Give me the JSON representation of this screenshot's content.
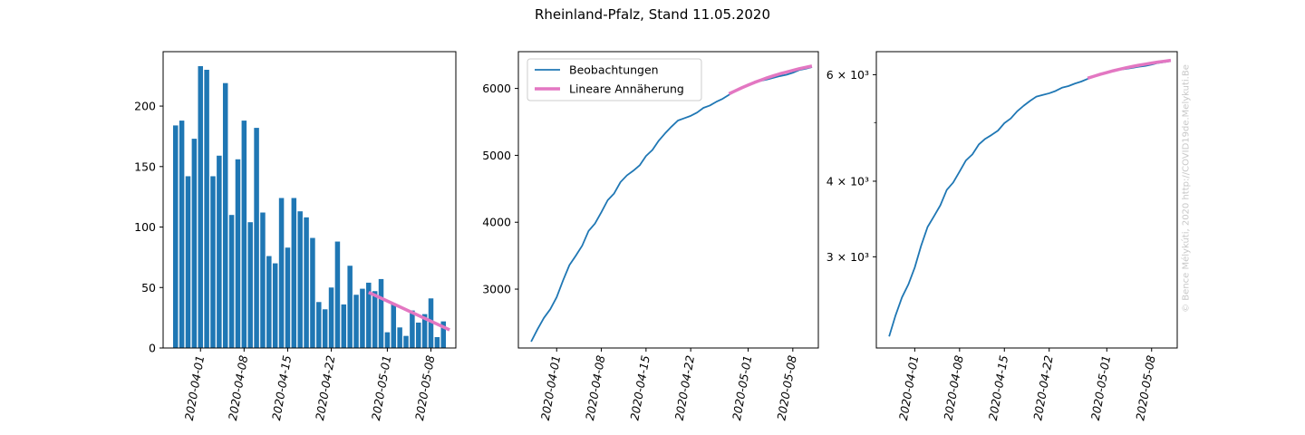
{
  "suptitle": "Rheinland-Pfalz, Stand 11.05.2020",
  "watermark": "© Bence Mélykúti, 2020  http://COVID19de.Melykuti.Be",
  "colors": {
    "observed": "#1f77b4",
    "fit": "#e377c2"
  },
  "chart_data": [
    {
      "type": "bar",
      "title": "",
      "xlabel": "",
      "ylabel": "",
      "ylim": [
        0,
        245
      ],
      "yticks": [
        0,
        50,
        100,
        150,
        200
      ],
      "xticks": [
        "2020-04-01",
        "2020-04-08",
        "2020-04-15",
        "2020-04-22",
        "2020-05-01",
        "2020-05-08"
      ],
      "xlim": [
        "2020-03-26",
        "2020-05-12"
      ],
      "grid": false,
      "series": [
        {
          "kind": "bar",
          "x": [
            "2020-03-28",
            "2020-03-29",
            "2020-03-30",
            "2020-03-31",
            "2020-04-01",
            "2020-04-02",
            "2020-04-03",
            "2020-04-04",
            "2020-04-05",
            "2020-04-06",
            "2020-04-07",
            "2020-04-08",
            "2020-04-09",
            "2020-04-10",
            "2020-04-11",
            "2020-04-12",
            "2020-04-13",
            "2020-04-14",
            "2020-04-15",
            "2020-04-16",
            "2020-04-17",
            "2020-04-18",
            "2020-04-19",
            "2020-04-20",
            "2020-04-21",
            "2020-04-22",
            "2020-04-23",
            "2020-04-24",
            "2020-04-25",
            "2020-04-26",
            "2020-04-27",
            "2020-04-28",
            "2020-04-29",
            "2020-04-30",
            "2020-05-01",
            "2020-05-02",
            "2020-05-03",
            "2020-05-04",
            "2020-05-05",
            "2020-05-06",
            "2020-05-07",
            "2020-05-08",
            "2020-05-09",
            "2020-05-10",
            "2020-05-11"
          ],
          "values": [
            184,
            188,
            142,
            173,
            233,
            230,
            142,
            159,
            219,
            110,
            156,
            188,
            104,
            182,
            112,
            76,
            70,
            124,
            83,
            124,
            113,
            108,
            91,
            38,
            32,
            50,
            88,
            36,
            68,
            44,
            49,
            54,
            47,
            57,
            13,
            37,
            17,
            10,
            31,
            21,
            28,
            41,
            9,
            22,
            0
          ]
        },
        {
          "kind": "line",
          "x": [
            "2020-04-28",
            "2020-05-11"
          ],
          "values": [
            46,
            15
          ]
        }
      ]
    },
    {
      "type": "line",
      "title": "",
      "xlabel": "",
      "ylabel": "",
      "ylim": [
        2120,
        6550
      ],
      "yticks": [
        3000,
        4000,
        5000,
        6000
      ],
      "xticks": [
        "2020-04-01",
        "2020-04-08",
        "2020-04-15",
        "2020-04-22",
        "2020-05-01",
        "2020-05-08"
      ],
      "xlim": [
        "2020-03-26",
        "2020-05-12"
      ],
      "grid": false,
      "legend": {
        "placement": "upper left",
        "entries": [
          "Beobachtungen",
          "Lineare Annäherung"
        ]
      },
      "series": [
        {
          "name": "Beobachtungen",
          "x": [
            "2020-03-28",
            "2020-03-29",
            "2020-03-30",
            "2020-03-31",
            "2020-04-01",
            "2020-04-02",
            "2020-04-03",
            "2020-04-04",
            "2020-04-05",
            "2020-04-06",
            "2020-04-07",
            "2020-04-08",
            "2020-04-09",
            "2020-04-10",
            "2020-04-11",
            "2020-04-12",
            "2020-04-13",
            "2020-04-14",
            "2020-04-15",
            "2020-04-16",
            "2020-04-17",
            "2020-04-18",
            "2020-04-19",
            "2020-04-20",
            "2020-04-21",
            "2020-04-22",
            "2020-04-23",
            "2020-04-24",
            "2020-04-25",
            "2020-04-26",
            "2020-04-27",
            "2020-04-28",
            "2020-04-29",
            "2020-04-30",
            "2020-05-01",
            "2020-05-02",
            "2020-05-03",
            "2020-05-04",
            "2020-05-05",
            "2020-05-06",
            "2020-05-07",
            "2020-05-08",
            "2020-05-09",
            "2020-05-10",
            "2020-05-11"
          ],
          "values": [
            2215,
            2400,
            2570,
            2700,
            2880,
            3130,
            3360,
            3500,
            3650,
            3870,
            3980,
            4150,
            4330,
            4430,
            4600,
            4700,
            4770,
            4850,
            4990,
            5080,
            5220,
            5330,
            5430,
            5520,
            5555,
            5590,
            5640,
            5710,
            5745,
            5800,
            5845,
            5905,
            5960,
            6010,
            6060,
            6085,
            6115,
            6135,
            6160,
            6185,
            6205,
            6235,
            6275,
            6295,
            6320
          ]
        },
        {
          "name": "Lineare Annäherung",
          "x": [
            "2020-04-28",
            "2020-04-29",
            "2020-04-30",
            "2020-05-01",
            "2020-05-02",
            "2020-05-03",
            "2020-05-04",
            "2020-05-05",
            "2020-05-06",
            "2020-05-07",
            "2020-05-08",
            "2020-05-09",
            "2020-05-10",
            "2020-05-11"
          ],
          "values": [
            5920,
            5965,
            6010,
            6050,
            6090,
            6125,
            6160,
            6190,
            6220,
            6245,
            6270,
            6295,
            6315,
            6335
          ]
        }
      ]
    },
    {
      "type": "line",
      "title": "",
      "xlabel": "",
      "ylabel": "",
      "yscale": "log",
      "ylim": [
        2120,
        6550
      ],
      "yticks": [
        {
          "value": 3000,
          "label": "3 × 10³"
        },
        {
          "value": 4000,
          "label": "4 × 10³"
        },
        {
          "value": 6000,
          "label": "6 × 10³"
        }
      ],
      "yminor": [
        5000
      ],
      "xticks": [
        "2020-04-01",
        "2020-04-08",
        "2020-04-15",
        "2020-04-22",
        "2020-05-01",
        "2020-05-08"
      ],
      "xlim": [
        "2020-03-26",
        "2020-05-12"
      ],
      "grid": false,
      "series": [
        {
          "x": [
            "2020-03-28",
            "2020-03-29",
            "2020-03-30",
            "2020-03-31",
            "2020-04-01",
            "2020-04-02",
            "2020-04-03",
            "2020-04-04",
            "2020-04-05",
            "2020-04-06",
            "2020-04-07",
            "2020-04-08",
            "2020-04-09",
            "2020-04-10",
            "2020-04-11",
            "2020-04-12",
            "2020-04-13",
            "2020-04-14",
            "2020-04-15",
            "2020-04-16",
            "2020-04-17",
            "2020-04-18",
            "2020-04-19",
            "2020-04-20",
            "2020-04-21",
            "2020-04-22",
            "2020-04-23",
            "2020-04-24",
            "2020-04-25",
            "2020-04-26",
            "2020-04-27",
            "2020-04-28",
            "2020-04-29",
            "2020-04-30",
            "2020-05-01",
            "2020-05-02",
            "2020-05-03",
            "2020-05-04",
            "2020-05-05",
            "2020-05-06",
            "2020-05-07",
            "2020-05-08",
            "2020-05-09",
            "2020-05-10",
            "2020-05-11"
          ],
          "values": [
            2215,
            2400,
            2570,
            2700,
            2880,
            3130,
            3360,
            3500,
            3650,
            3870,
            3980,
            4150,
            4330,
            4430,
            4600,
            4700,
            4770,
            4850,
            4990,
            5080,
            5220,
            5330,
            5430,
            5520,
            5555,
            5590,
            5640,
            5710,
            5745,
            5800,
            5845,
            5905,
            5960,
            6010,
            6060,
            6085,
            6115,
            6135,
            6160,
            6185,
            6205,
            6235,
            6275,
            6295,
            6320
          ]
        },
        {
          "x": [
            "2020-04-28",
            "2020-04-29",
            "2020-04-30",
            "2020-05-01",
            "2020-05-02",
            "2020-05-03",
            "2020-05-04",
            "2020-05-05",
            "2020-05-06",
            "2020-05-07",
            "2020-05-08",
            "2020-05-09",
            "2020-05-10",
            "2020-05-11"
          ],
          "values": [
            5920,
            5965,
            6010,
            6050,
            6090,
            6125,
            6160,
            6190,
            6220,
            6245,
            6270,
            6295,
            6315,
            6335
          ]
        }
      ]
    }
  ]
}
